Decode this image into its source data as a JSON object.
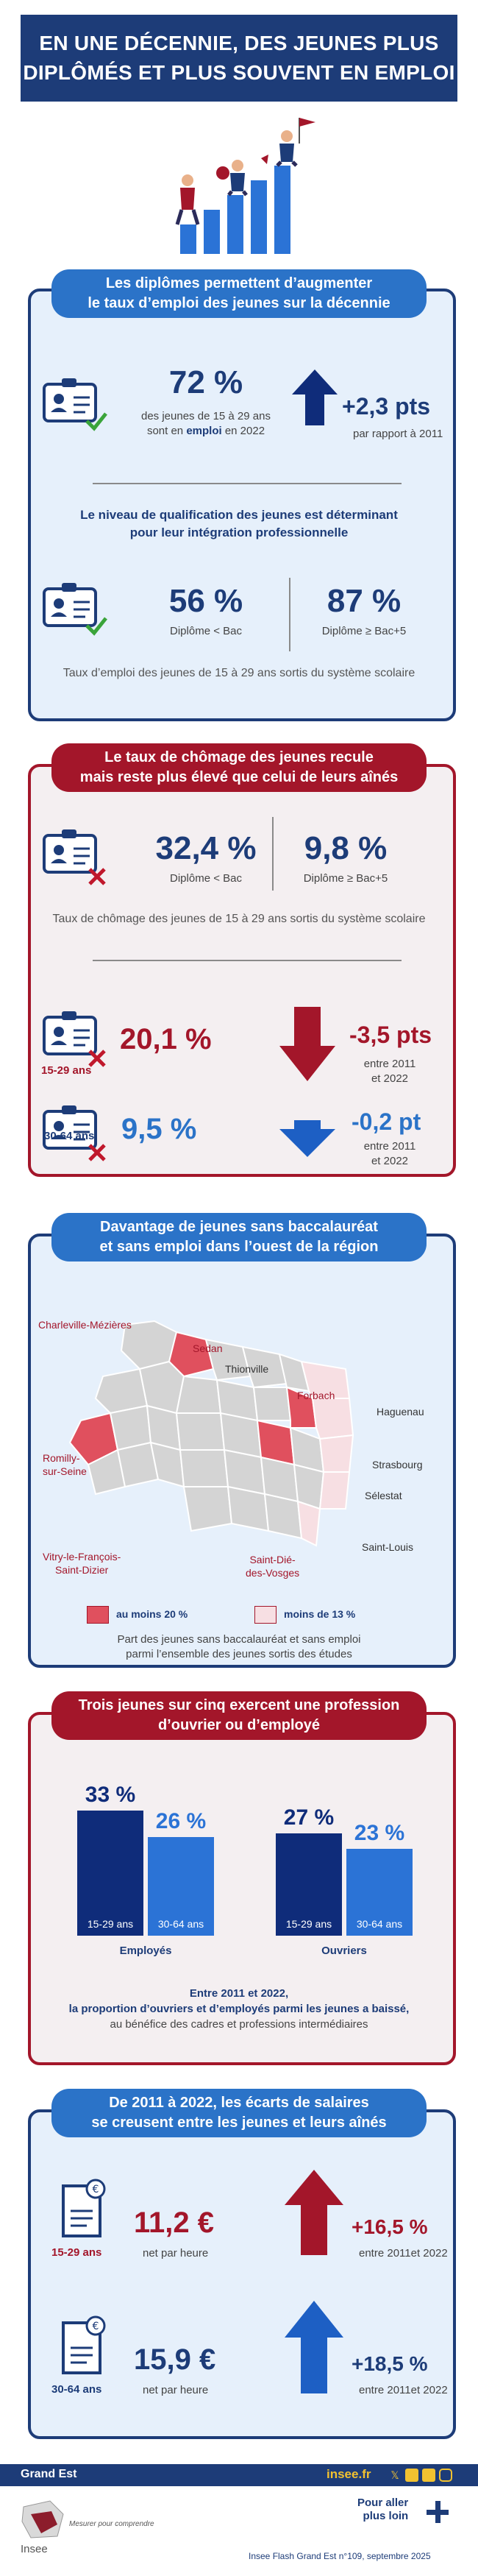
{
  "header": {
    "title_line1": "EN UNE DÉCENNIE, DES JEUNES PLUS",
    "title_line2": "DIPLÔMÉS ET PLUS SOUVENT EN EMPLOI"
  },
  "section1": {
    "heading_line1": "Les diplômes permettent d’augmenter",
    "heading_line2": "le taux d’emploi des jeunes sur la décennie",
    "rate": "72 %",
    "rate_desc1": "des jeunes de 15 à 29 ans",
    "rate_desc2_pre": "sont en ",
    "rate_desc2_bold": "emploi",
    "rate_desc2_post": " en 2022",
    "change": "+2,3 pts",
    "change_desc": "par rapport à 2011",
    "sub_heading_line1": "Le niveau de qualification des jeunes est déterminant",
    "sub_heading_line2": "pour leur intégration professionnelle",
    "low_rate": "56 %",
    "low_label": "Diplôme < Bac",
    "high_rate": "87 %",
    "high_label": "Diplôme ≥ Bac+5",
    "note": "Taux d’emploi des jeunes de 15 à 29 ans sortis du système scolaire"
  },
  "section2": {
    "heading_line1": "Le taux de chômage des jeunes recule",
    "heading_line2": "mais reste plus élevé que celui de leurs aînés",
    "low_rate": "32,4 %",
    "low_label": "Diplôme < Bac",
    "high_rate": "9,8 %",
    "high_label": "Diplôme ≥ Bac+5",
    "note": "Taux de chômage des jeunes de 15 à 29 ans sortis du système scolaire",
    "young_label": "15-29 ans",
    "young_rate": "20,1 %",
    "young_change": "-3,5 pts",
    "young_period1": "entre 2011",
    "young_period2": "et 2022",
    "old_label": "30-64 ans",
    "old_rate": "9,5 %",
    "old_change": "-0,2 pt",
    "old_period1": "entre 2011",
    "old_period2": "et 2022"
  },
  "section3": {
    "heading_line1": "Davantage de jeunes sans baccalauréat",
    "heading_line2": "et sans emploi dans l’ouest de la région",
    "cities": {
      "charleville": "Charleville-Mézières",
      "sedan": "Sedan",
      "thionville": "Thionville",
      "forbach": "Forbach",
      "haguenau": "Haguenau",
      "romilly1": "Romilly-",
      "romilly2": "sur-Seine",
      "strasbourg": "Strasbourg",
      "selestat": "Sélestat",
      "saintlouis": "Saint-Louis",
      "vitry1": "Vitry-le-François-",
      "vitry2": "Saint-Dizier",
      "saintdie1": "Saint-Dié-",
      "saintdie2": "des-Vosges"
    },
    "legend_high": "au moins 20 %",
    "legend_low": "moins de 13 %",
    "legend_colors": {
      "high": "#e0505e",
      "low": "#f7dfe3",
      "mid": "#d4d4d4"
    },
    "note_line1": "Part des jeunes sans baccalauréat et sans emploi",
    "note_line2": "parmi l’ensemble des jeunes sortis des études"
  },
  "section4": {
    "heading_line1": "Trois jeunes sur cinq exercent une profession",
    "heading_line2": "d’ouvrier ou d’employé",
    "chart_data": {
      "type": "bar",
      "categories": [
        "Employés",
        "Ouvriers"
      ],
      "series": [
        {
          "name": "15-29 ans",
          "values": [
            33,
            27
          ],
          "labels": [
            "33 %",
            "27 %"
          ],
          "color": "#0f2c7a"
        },
        {
          "name": "30-64 ans",
          "values": [
            26,
            23
          ],
          "labels": [
            "26 %",
            "23 %"
          ],
          "color": "#2b73d6"
        }
      ],
      "ylim": [
        0,
        33
      ]
    },
    "note_line1": "Entre 2011 et 2022,",
    "note_line2": "la proportion d’ouvriers et d’employés parmi les jeunes a baissé,",
    "note_line3": "au bénéfice des cadres et professions intermédiaires"
  },
  "section5": {
    "heading_line1": "De 2011 à 2022, les écarts de salaires",
    "heading_line2": "se creusent entre les jeunes et leurs aînés",
    "young_label": "15-29 ans",
    "young_wage": "11,2 €",
    "young_unit": "net par heure",
    "young_change": "+16,5 %",
    "young_period": "entre 2011et 2022",
    "old_label": "30-64 ans",
    "old_wage": "15,9 €",
    "old_unit": "net par heure",
    "old_change": "+18,5 %",
    "old_period": "entre 2011et 2022"
  },
  "footer": {
    "region": "Grand Est",
    "site": "insee.fr",
    "brand": "Insee",
    "tagline": "Mesurer pour comprendre",
    "more_line1": "Pour aller",
    "more_line2": "plus loin",
    "reference": "Insee Flash Grand Est n°109, septembre 2025"
  }
}
